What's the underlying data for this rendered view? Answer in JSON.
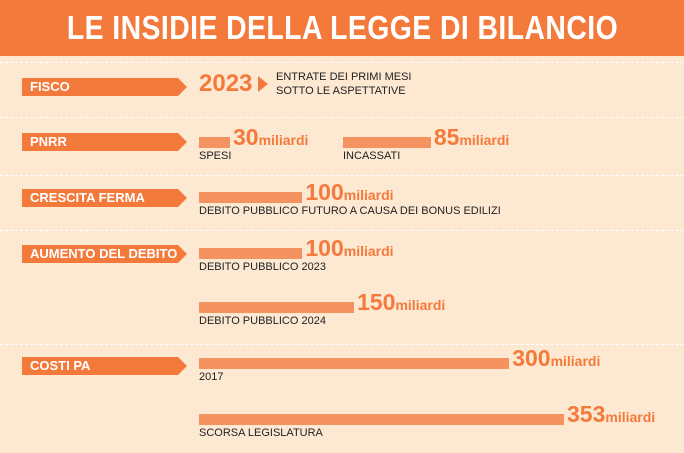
{
  "title": "LE INSIDIE DELLA LEGGE DI BILANCIO",
  "unit": "miliardi",
  "colors": {
    "accent": "#f47a3c",
    "bar": "#f4935f",
    "background": "#fde8d2"
  },
  "sections": {
    "fisco": {
      "label": "FISCO",
      "year": "2023",
      "text_line1": "ENTRATE DEI PRIMI MESI",
      "text_line2": "SOTTO LE ASPETTATIVE"
    },
    "pnrr": {
      "label": "PNRR"
    },
    "crescita": {
      "label": "CRESCITA FERMA"
    },
    "debito": {
      "label": "AUMENTO DEL DEBITO"
    },
    "costi": {
      "label": "COSTI PA"
    }
  },
  "chart_data": {
    "type": "bar",
    "title": "LE INSIDIE DELLA LEGGE DI BILANCIO",
    "unit": "miliardi",
    "bars": [
      {
        "section": "PNRR",
        "label": "SPESI",
        "value": 30
      },
      {
        "section": "PNRR",
        "label": "INCASSATI",
        "value": 85
      },
      {
        "section": "CRESCITA FERMA",
        "label": "DEBITO PUBBLICO FUTURO A CAUSA DEI BONUS EDILIZI",
        "value": 100
      },
      {
        "section": "AUMENTO DEL DEBITO",
        "label": "DEBITO PUBBLICO 2023",
        "value": 100
      },
      {
        "section": "AUMENTO DEL DEBITO",
        "label": "DEBITO PUBBLICO 2024",
        "value": 150
      },
      {
        "section": "COSTI PA",
        "label": "2017",
        "value": 300
      },
      {
        "section": "COSTI PA",
        "label": "SCORSA LEGISLATURA",
        "value": 353
      }
    ]
  }
}
